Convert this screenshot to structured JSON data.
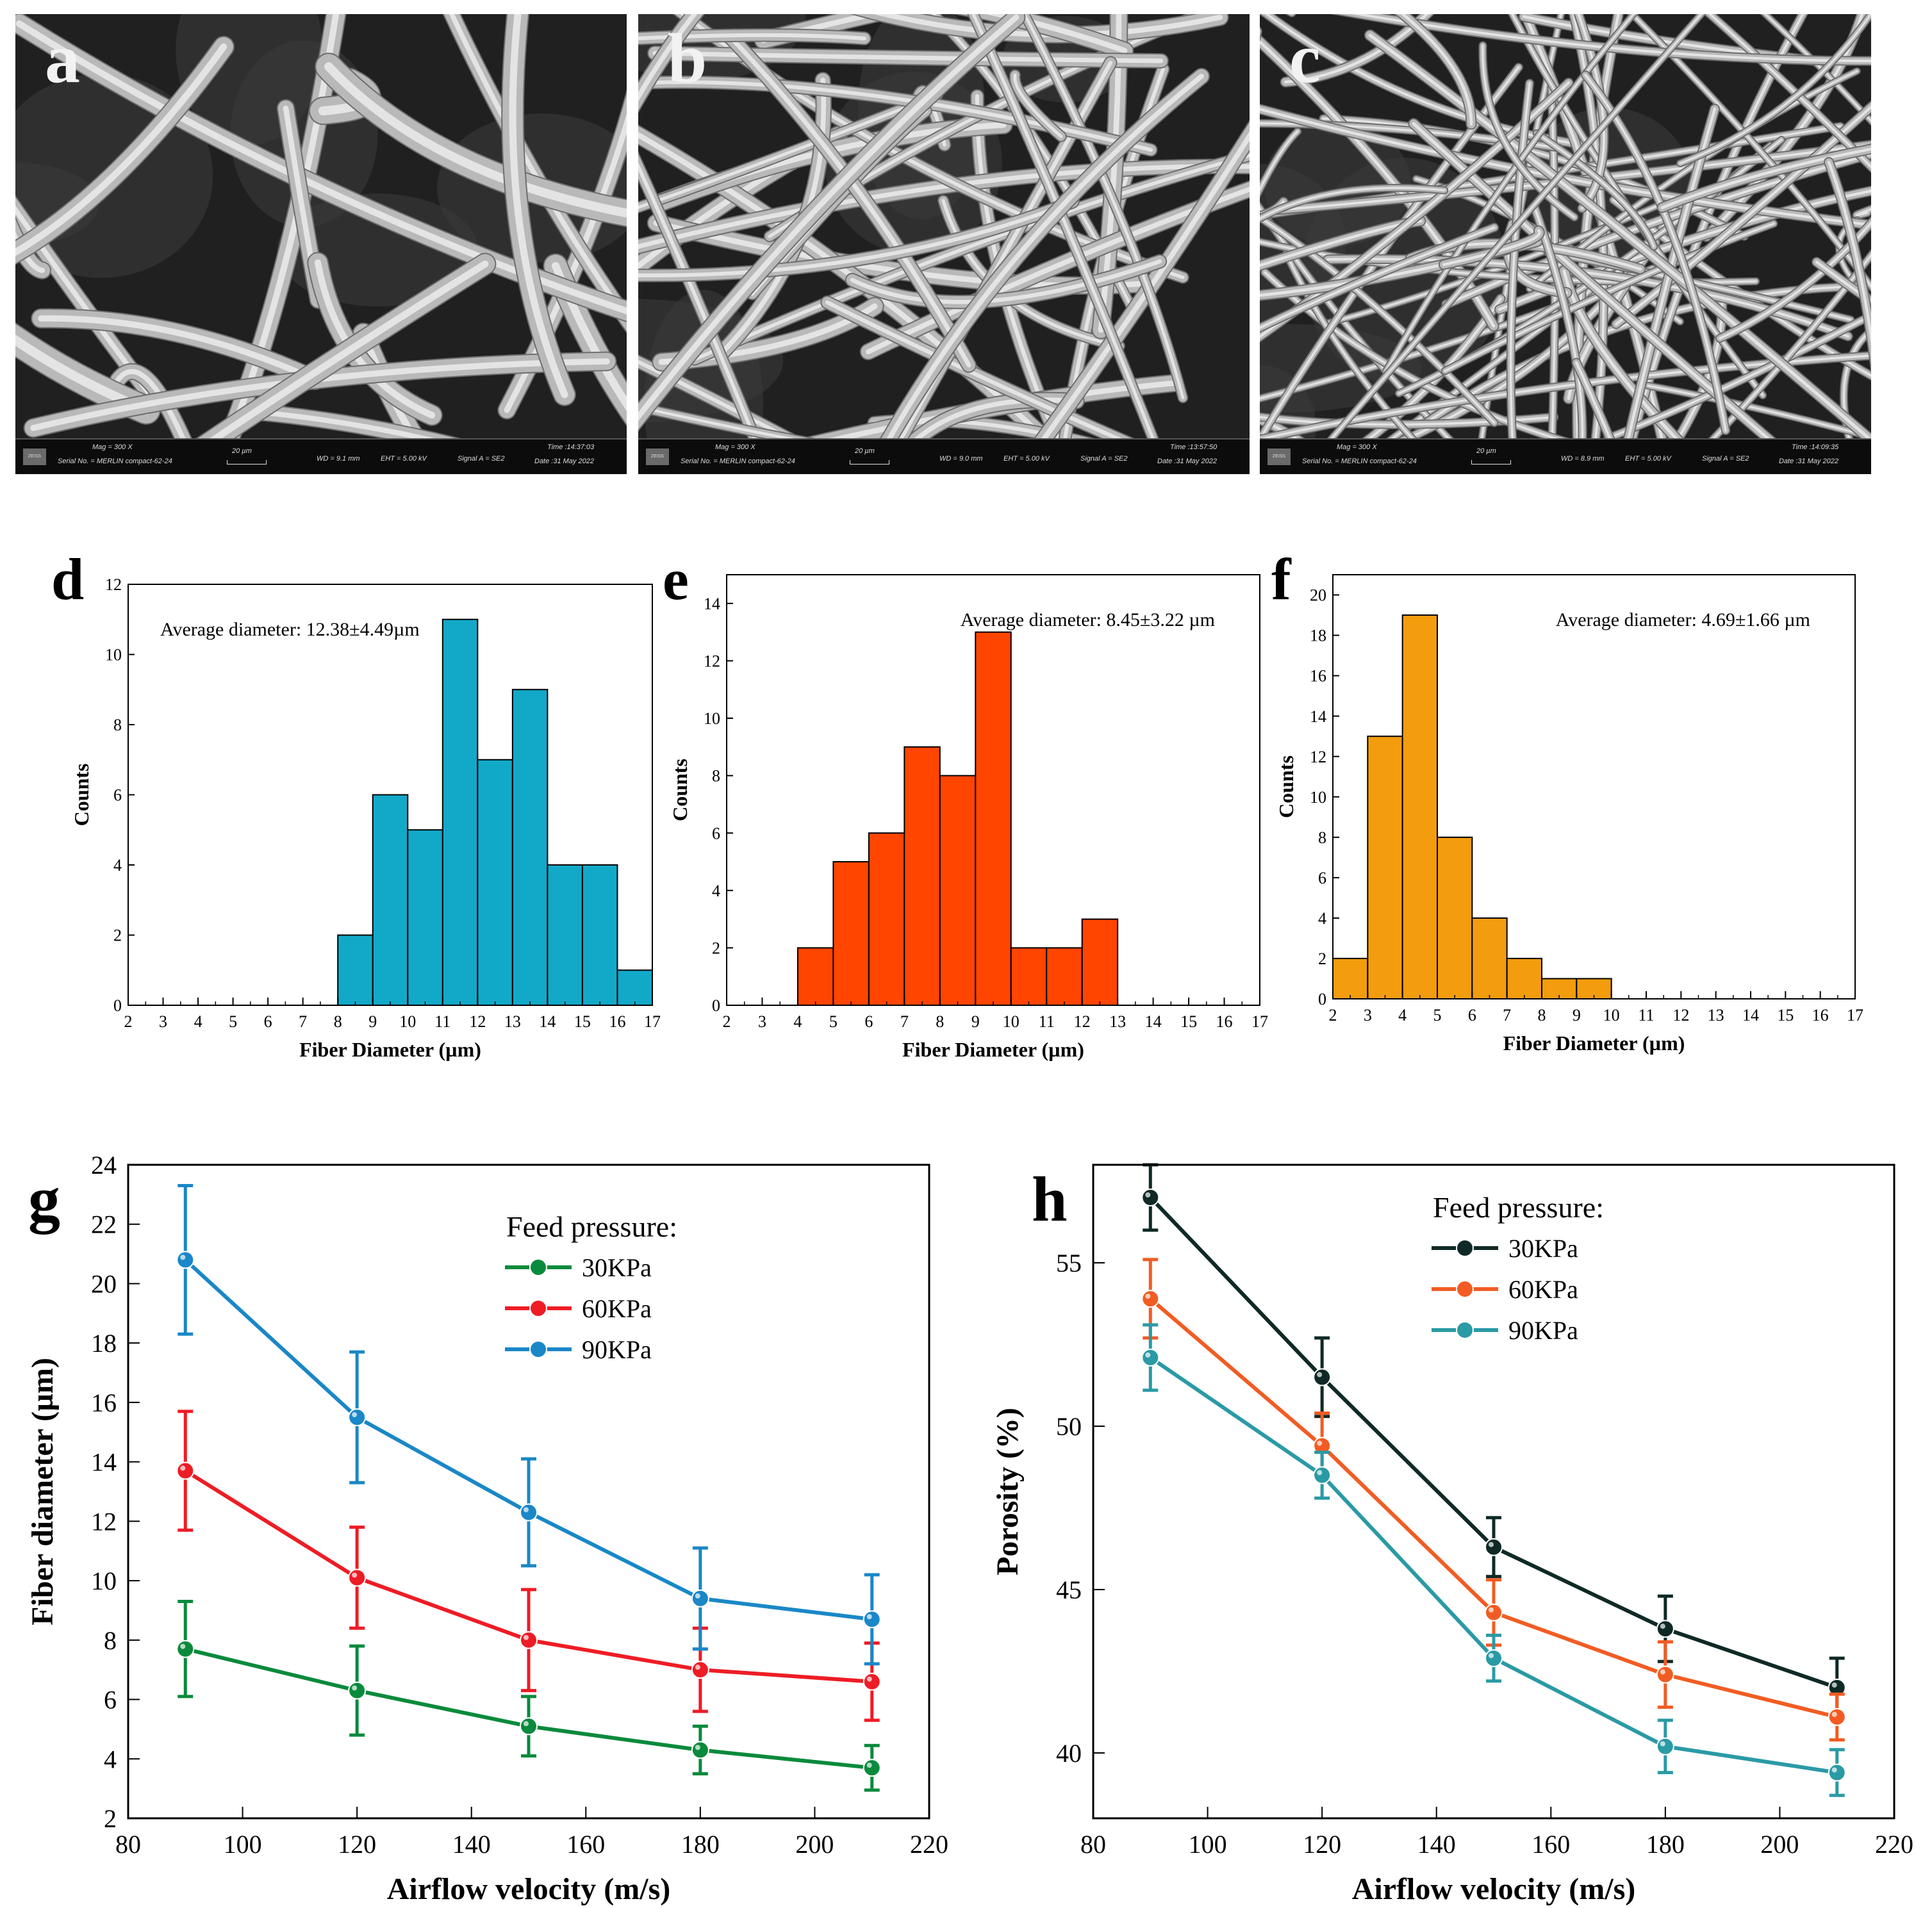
{
  "sem_panels": [
    {
      "letter": "a",
      "mag": "Mag =   300 X",
      "serial": "Serial No. = MERLIN compact-62-24",
      "scale": "20 µm",
      "wd": "WD =  9.1 mm",
      "eht": "EHT =  5.00 kV",
      "signal": "Signal A = SE2",
      "time": "Time :14:37:03",
      "date": "Date :31 May 2022",
      "logo": "ZEISS"
    },
    {
      "letter": "b",
      "mag": "Mag =   300 X",
      "serial": "Serial No. = MERLIN compact-62-24",
      "scale": "20 µm",
      "wd": "WD =  9.0 mm",
      "eht": "EHT =  5.00 kV",
      "signal": "Signal A = SE2",
      "time": "Time :13:57:50",
      "date": "Date :31 May 2022",
      "logo": "ZEISS"
    },
    {
      "letter": "c",
      "mag": "Mag =   300 X",
      "serial": "Serial No. = MERLIN compact-62-24",
      "scale": "20 µm",
      "wd": "WD =  8.9 mm",
      "eht": "EHT =  5.00 kV",
      "signal": "Signal A = SE2",
      "time": "Time :14:09:35",
      "date": "Date :31 May 2022",
      "logo": "ZEISS"
    }
  ],
  "chart_data": [
    {
      "panel": "d",
      "type": "bar",
      "title": "",
      "annotation": "Average diameter: 12.38±4.49µm",
      "xlabel": "Fiber Diameter (µm)",
      "ylabel": "Counts",
      "xlim": [
        2,
        17
      ],
      "ylim": [
        0,
        12
      ],
      "xticks": [
        2,
        3,
        4,
        5,
        6,
        7,
        8,
        9,
        10,
        11,
        12,
        13,
        14,
        15,
        16,
        17
      ],
      "yticks": [
        0,
        2,
        4,
        6,
        8,
        10,
        12
      ],
      "bin_start": 8,
      "bin_width": 1,
      "values": [
        2,
        6,
        5,
        11,
        7,
        9,
        4,
        4,
        1
      ],
      "color": "#12a9c9"
    },
    {
      "panel": "e",
      "type": "bar",
      "title": "",
      "annotation": "Average diameter: 8.45±3.22 µm",
      "xlabel": "Fiber Diameter (µm)",
      "ylabel": "Counts",
      "xlim": [
        2,
        17
      ],
      "ylim": [
        0,
        15
      ],
      "xticks": [
        2,
        3,
        4,
        5,
        6,
        7,
        8,
        9,
        10,
        11,
        12,
        13,
        14,
        15,
        16,
        17
      ],
      "yticks": [
        0,
        2,
        4,
        6,
        8,
        10,
        12,
        14
      ],
      "bin_start": 4,
      "bin_width": 1,
      "values": [
        2,
        5,
        6,
        9,
        8,
        13,
        2,
        2,
        3
      ],
      "color": "#ff4500"
    },
    {
      "panel": "f",
      "type": "bar",
      "title": "",
      "annotation": "Average diameter: 4.69±1.66 µm",
      "xlabel": "Fiber Diameter (µm)",
      "ylabel": "Counts",
      "xlim": [
        2,
        17
      ],
      "ylim": [
        0,
        21
      ],
      "xticks": [
        2,
        3,
        4,
        5,
        6,
        7,
        8,
        9,
        10,
        11,
        12,
        13,
        14,
        15,
        16,
        17
      ],
      "yticks": [
        0,
        2,
        4,
        6,
        8,
        10,
        12,
        14,
        16,
        18,
        20
      ],
      "bin_start": 2,
      "bin_width": 1,
      "values": [
        2,
        13,
        19,
        8,
        4,
        2,
        1,
        1
      ],
      "color": "#f29c0e"
    },
    {
      "panel": "g",
      "type": "line",
      "title": "",
      "xlabel": "Airflow velocity (m/s)",
      "ylabel": "Fiber diameter (µm)",
      "xlim": [
        80,
        220
      ],
      "ylim": [
        2,
        24
      ],
      "xticks": [
        80,
        100,
        120,
        140,
        160,
        180,
        200,
        220
      ],
      "yticks": [
        2,
        4,
        6,
        8,
        10,
        12,
        14,
        16,
        18,
        20,
        22,
        24
      ],
      "legend_title": "Feed pressure:",
      "x": [
        90,
        120,
        150,
        180,
        210
      ],
      "series": [
        {
          "name": "30KPa",
          "color": "#0a8a3c",
          "values": [
            7.7,
            6.3,
            5.1,
            4.3,
            3.7
          ],
          "errors": [
            1.6,
            1.5,
            1.0,
            0.8,
            0.75
          ]
        },
        {
          "name": "60KPa",
          "color": "#ee1c25",
          "values": [
            13.7,
            10.1,
            8.0,
            7.0,
            6.6
          ],
          "errors": [
            2.0,
            1.7,
            1.7,
            1.4,
            1.3
          ]
        },
        {
          "name": "90KPa",
          "color": "#1a87c7",
          "values": [
            20.8,
            15.5,
            12.3,
            9.4,
            8.7
          ],
          "errors": [
            2.5,
            2.2,
            1.8,
            1.7,
            1.5
          ]
        }
      ]
    },
    {
      "panel": "h",
      "type": "line",
      "title": "",
      "xlabel": "Airflow velocity (m/s)",
      "ylabel": "Porosity (%)",
      "xlim": [
        80,
        220
      ],
      "ylim": [
        38,
        58
      ],
      "xticks": [
        80,
        100,
        120,
        140,
        160,
        180,
        200,
        220
      ],
      "yticks": [
        40,
        45,
        50,
        55
      ],
      "legend_title": "Feed pressure:",
      "x": [
        90,
        120,
        150,
        180,
        210
      ],
      "series": [
        {
          "name": "30KPa",
          "color": "#0f2a26",
          "values": [
            57.0,
            51.5,
            46.3,
            43.8,
            42.0
          ],
          "errors": [
            1.0,
            1.2,
            0.9,
            1.0,
            0.9
          ]
        },
        {
          "name": "60KPa",
          "color": "#f25c23",
          "values": [
            53.9,
            49.4,
            44.3,
            42.4,
            41.1
          ],
          "errors": [
            1.2,
            1.0,
            1.0,
            1.0,
            0.7
          ]
        },
        {
          "name": "90KPa",
          "color": "#2a9aa5",
          "values": [
            52.1,
            48.5,
            42.9,
            40.2,
            39.4
          ],
          "errors": [
            1.0,
            0.7,
            0.7,
            0.8,
            0.7
          ]
        }
      ]
    }
  ]
}
